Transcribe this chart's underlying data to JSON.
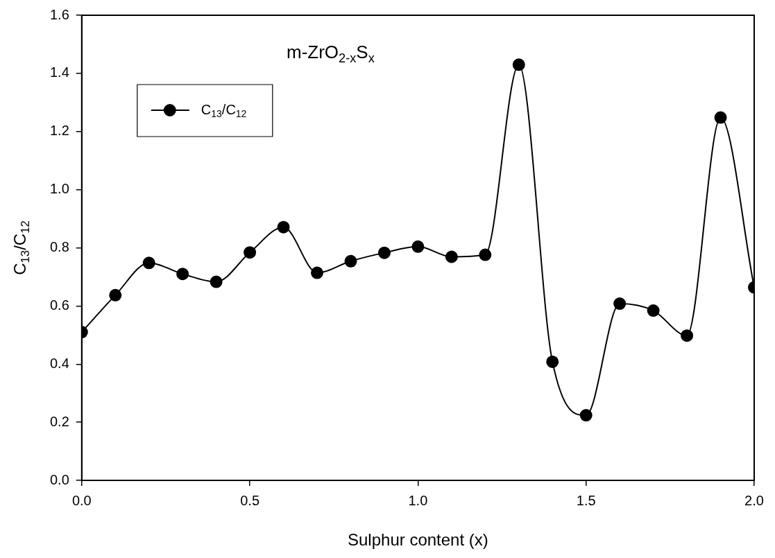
{
  "chart_data": {
    "type": "line",
    "title": "m-ZrO$_{2-x}$S$_{x}$",
    "xlabel": "Sulphur content (x)",
    "ylabel": "C$_{13}$/C$_{12}$",
    "x": [
      0.0,
      0.1,
      0.2,
      0.3,
      0.4,
      0.5,
      0.6,
      0.7,
      0.8,
      0.9,
      1.0,
      1.1,
      1.2,
      1.3,
      1.4,
      1.5,
      1.6,
      1.7,
      1.8,
      1.9,
      2.0
    ],
    "series": [
      {
        "name": "C$_{13}$/C$_{12}$",
        "color": "#000000",
        "values": [
          0.51,
          0.637,
          0.748,
          0.71,
          0.683,
          0.784,
          0.871,
          0.714,
          0.754,
          0.783,
          0.804,
          0.769,
          0.776,
          1.43,
          0.408,
          0.224,
          0.608,
          0.584,
          0.498,
          1.248,
          0.664
        ]
      }
    ],
    "xlim": [
      0.0,
      2.0
    ],
    "xticks": [
      {
        "value": 0,
        "label": "0.0"
      },
      0.5,
      {
        "value": 1,
        "label": "1.0"
      },
      1.5,
      {
        "value": 2,
        "label": "2.0"
      }
    ],
    "ylim": [
      0.0,
      1.6
    ],
    "yticks": [
      {
        "value": 0,
        "label": "0.0"
      },
      0.2,
      0.4,
      0.6,
      0.8,
      {
        "value": 1,
        "label": "1.0"
      },
      1.2,
      1.4,
      1.6
    ],
    "grid": false,
    "legend": "top left",
    "marker": "circle",
    "line_style": "solid"
  }
}
